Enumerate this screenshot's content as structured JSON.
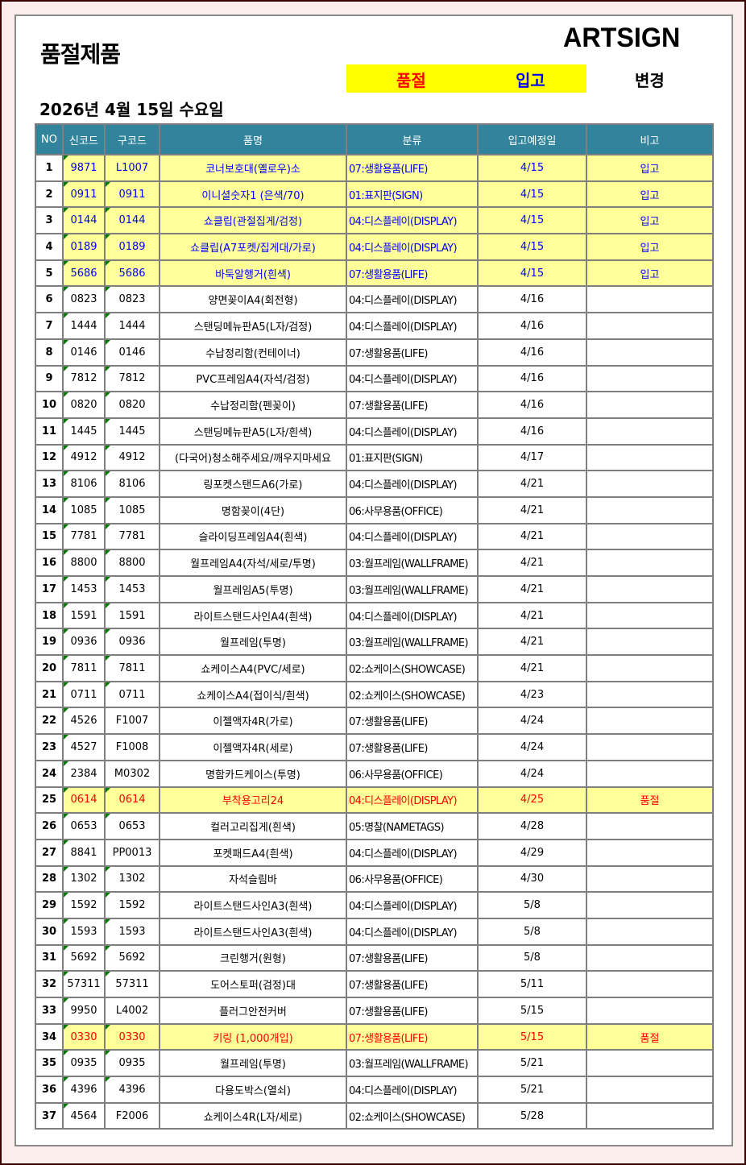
{
  "title": "품절제품",
  "logo": "ARTSIGN",
  "legend": {
    "soldout": "품절",
    "arrival": "입고",
    "change": "변경"
  },
  "date": "2026년 4월 15일 수요일",
  "colors": {
    "header": "#31849b",
    "highlight": "#ffff99",
    "arrival_text": "#0000ff",
    "soldout_text": "#ff0000"
  },
  "headers": [
    "NO",
    "신코드",
    "구코드",
    "품명",
    "분류",
    "입고예정일",
    "비고"
  ],
  "rows": [
    [
      "1",
      "9871",
      "L1007",
      "코너보호대(옐로우)소",
      "07:생활용품(LIFE)",
      "4/15",
      "입고"
    ],
    [
      "2",
      "0911",
      "0911",
      "이니셜숫자1 (은색/70)",
      "01:표지판(SIGN)",
      "4/15",
      "입고"
    ],
    [
      "3",
      "0144",
      "0144",
      "쇼클립(관절집게/검정)",
      "04:디스플레이(DISPLAY)",
      "4/15",
      "입고"
    ],
    [
      "4",
      "0189",
      "0189",
      "쇼클립(A7포켓/집게대/가로)",
      "04:디스플레이(DISPLAY)",
      "4/15",
      "입고"
    ],
    [
      "5",
      "5686",
      "5686",
      "바둑알행거(흰색)",
      "07:생활용품(LIFE)",
      "4/15",
      "입고"
    ],
    [
      "6",
      "0823",
      "0823",
      "양면꽂이A4(회전형)",
      "04:디스플레이(DISPLAY)",
      "4/16",
      ""
    ],
    [
      "7",
      "1444",
      "1444",
      "스탠딩메뉴판A5(L자/검정)",
      "04:디스플레이(DISPLAY)",
      "4/16",
      ""
    ],
    [
      "8",
      "0146",
      "0146",
      "수납정리함(컨테이너)",
      "07:생활용품(LIFE)",
      "4/16",
      ""
    ],
    [
      "9",
      "7812",
      "7812",
      "PVC프레임A4(자석/검정)",
      "04:디스플레이(DISPLAY)",
      "4/16",
      ""
    ],
    [
      "10",
      "0820",
      "0820",
      "수납정리함(펜꽂이)",
      "07:생활용품(LIFE)",
      "4/16",
      ""
    ],
    [
      "11",
      "1445",
      "1445",
      "스탠딩메뉴판A5(L자/흰색)",
      "04:디스플레이(DISPLAY)",
      "4/16",
      ""
    ],
    [
      "12",
      "4912",
      "4912",
      "(다국어)청소해주세요/깨우지마세요",
      "01:표지판(SIGN)",
      "4/17",
      ""
    ],
    [
      "13",
      "8106",
      "8106",
      "링포켓스탠드A6(가로)",
      "04:디스플레이(DISPLAY)",
      "4/21",
      ""
    ],
    [
      "14",
      "1085",
      "1085",
      "명함꽂이(4단)",
      "06:사무용품(OFFICE)",
      "4/21",
      ""
    ],
    [
      "15",
      "7781",
      "7781",
      "슬라이딩프레임A4(흰색)",
      "04:디스플레이(DISPLAY)",
      "4/21",
      ""
    ],
    [
      "16",
      "8800",
      "8800",
      "월프레임A4(자석/세로/투명)",
      "03:월프레임(WALLFRAME)",
      "4/21",
      ""
    ],
    [
      "17",
      "1453",
      "1453",
      "월프레임A5(투명)",
      "03:월프레임(WALLFRAME)",
      "4/21",
      ""
    ],
    [
      "18",
      "1591",
      "1591",
      "라이트스탠드사인A4(흰색)",
      "04:디스플레이(DISPLAY)",
      "4/21",
      ""
    ],
    [
      "19",
      "0936",
      "0936",
      "월프레임(투명)",
      "03:월프레임(WALLFRAME)",
      "4/21",
      ""
    ],
    [
      "20",
      "7811",
      "7811",
      "쇼케이스A4(PVC/세로)",
      "02:쇼케이스(SHOWCASE)",
      "4/21",
      ""
    ],
    [
      "21",
      "0711",
      "0711",
      "쇼케이스A4(접이식/흰색)",
      "02:쇼케이스(SHOWCASE)",
      "4/23",
      ""
    ],
    [
      "22",
      "4526",
      "F1007",
      "이젤액자4R(가로)",
      "07:생활용품(LIFE)",
      "4/24",
      ""
    ],
    [
      "23",
      "4527",
      "F1008",
      "이젤액자4R(세로)",
      "07:생활용품(LIFE)",
      "4/24",
      ""
    ],
    [
      "24",
      "2384",
      "M0302",
      "명함카드케이스(투명)",
      "06:사무용품(OFFICE)",
      "4/24",
      ""
    ],
    [
      "25",
      "0614",
      "0614",
      "부착용고리24",
      "04:디스플레이(DISPLAY)",
      "4/25",
      "품절"
    ],
    [
      "26",
      "0653",
      "0653",
      "컬러고리집게(흰색)",
      "05:명찰(NAMETAGS)",
      "4/28",
      ""
    ],
    [
      "27",
      "8841",
      "PP0013",
      "포켓패드A4(흰색)",
      "04:디스플레이(DISPLAY)",
      "4/29",
      ""
    ],
    [
      "28",
      "1302",
      "1302",
      "자석슬림바",
      "06:사무용품(OFFICE)",
      "4/30",
      ""
    ],
    [
      "29",
      "1592",
      "1592",
      "라이트스탠드사인A3(흰색)",
      "04:디스플레이(DISPLAY)",
      "5/8",
      ""
    ],
    [
      "30",
      "1593",
      "1593",
      "라이트스탠드사인A3(흰색)",
      "04:디스플레이(DISPLAY)",
      "5/8",
      ""
    ],
    [
      "31",
      "5692",
      "5692",
      "크린행거(원형)",
      "07:생활용품(LIFE)",
      "5/8",
      ""
    ],
    [
      "32",
      "57311",
      "57311",
      "도어스토퍼(검정)대",
      "07:생활용품(LIFE)",
      "5/11",
      ""
    ],
    [
      "33",
      "9950",
      "L4002",
      "플러그안전커버",
      "07:생활용품(LIFE)",
      "5/15",
      ""
    ],
    [
      "34",
      "0330",
      "0330",
      "키링 (1,000개입)",
      "07:생활용품(LIFE)",
      "5/15",
      "품절"
    ],
    [
      "35",
      "0935",
      "0935",
      "월프레임(투명)",
      "03:월프레임(WALLFRAME)",
      "5/21",
      ""
    ],
    [
      "36",
      "4396",
      "4396",
      "다용도박스(열쇠)",
      "04:디스플레이(DISPLAY)",
      "5/21",
      ""
    ],
    [
      "37",
      "4564",
      "F2006",
      "쇼케이스4R(L자/세로)",
      "02:쇼케이스(SHOWCASE)",
      "5/28",
      ""
    ]
  ]
}
